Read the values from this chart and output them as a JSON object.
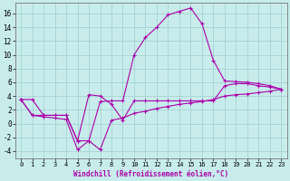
{
  "xlabel": "Windchill (Refroidissement éolien,°C)",
  "background_color": "#c8ecec",
  "line_color": "#aa00aa",
  "xlim": [
    -0.5,
    23.5
  ],
  "ylim": [
    -5,
    17.5
  ],
  "yticks": [
    -4,
    -2,
    0,
    2,
    4,
    6,
    8,
    10,
    12,
    14,
    16
  ],
  "xticks": [
    0,
    1,
    2,
    3,
    4,
    5,
    6,
    7,
    8,
    9,
    10,
    11,
    12,
    13,
    14,
    15,
    16,
    17,
    18,
    19,
    20,
    21,
    22,
    23
  ],
  "line1_x": [
    0,
    1,
    2,
    3,
    4,
    5,
    6,
    7,
    8,
    9,
    10,
    11,
    12,
    13,
    14,
    15,
    16,
    17,
    18,
    19,
    20,
    21,
    22,
    23
  ],
  "line1_y": [
    3.5,
    3.5,
    1.2,
    1.2,
    1.2,
    -2.5,
    -2.5,
    3.2,
    3.3,
    3.3,
    10.0,
    12.5,
    14.0,
    15.8,
    16.3,
    16.8,
    14.5,
    9.2,
    6.2,
    6.1,
    6.0,
    5.8,
    5.5,
    5.0
  ],
  "line2_x": [
    0,
    1,
    2,
    3,
    4,
    5,
    6,
    7,
    8,
    9,
    10,
    11,
    12,
    13,
    14,
    15,
    16,
    17,
    18,
    19,
    20,
    21,
    22,
    23
  ],
  "line2_y": [
    3.5,
    1.2,
    1.2,
    1.2,
    1.2,
    -2.5,
    4.2,
    4.0,
    2.8,
    0.5,
    3.3,
    3.3,
    3.3,
    3.3,
    3.3,
    3.3,
    3.3,
    3.3,
    5.5,
    5.8,
    5.8,
    5.5,
    5.3,
    5.0
  ],
  "line3_x": [
    0,
    1,
    2,
    3,
    4,
    5,
    6,
    7,
    8,
    9,
    10,
    11,
    12,
    13,
    14,
    15,
    16,
    17,
    18,
    19,
    20,
    21,
    22,
    23
  ],
  "line3_y": [
    3.5,
    1.2,
    1.0,
    0.8,
    0.6,
    -3.8,
    -2.5,
    -3.8,
    0.5,
    0.8,
    1.5,
    1.8,
    2.2,
    2.5,
    2.8,
    3.0,
    3.2,
    3.5,
    4.0,
    4.2,
    4.3,
    4.5,
    4.7,
    5.0
  ]
}
